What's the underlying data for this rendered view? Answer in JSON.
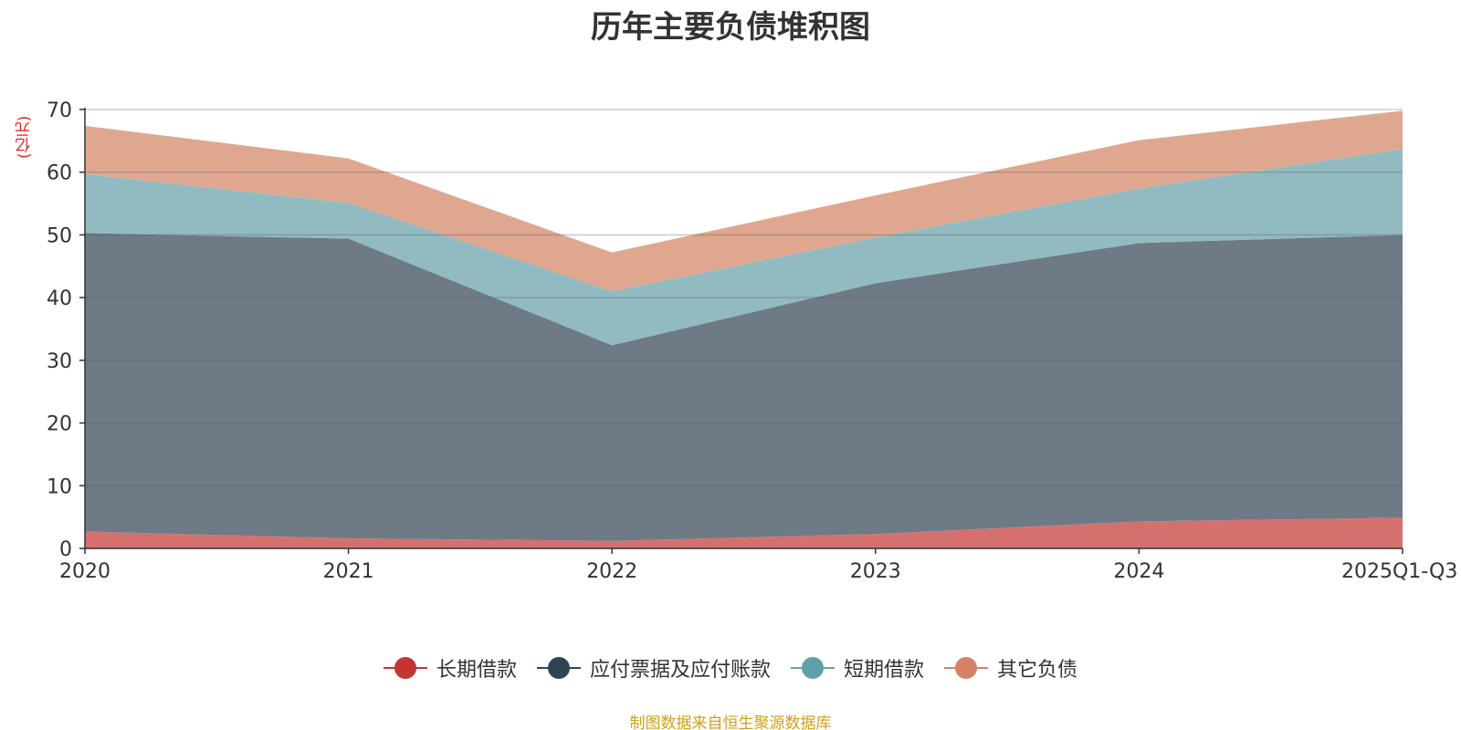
{
  "chart_data": {
    "type": "area",
    "stacked": true,
    "title": "历年主要负债堆积图",
    "ylabel": "(亿元)",
    "xlabel": "",
    "categories": [
      "2020",
      "2021",
      "2022",
      "2023",
      "2024",
      "2025Q1-Q3"
    ],
    "ylim": [
      0,
      70
    ],
    "yticks": [
      0,
      10,
      20,
      30,
      40,
      50,
      60,
      70
    ],
    "grid": true,
    "legend_position": "bottom",
    "series": [
      {
        "name": "长期借款",
        "color": "#c23531",
        "fill": "#d4716f",
        "values": [
          2.7,
          1.6,
          1.2,
          2.3,
          4.3,
          4.9
        ]
      },
      {
        "name": "应付票据及应付账款",
        "color": "#2f4554",
        "fill": "#6e7a85",
        "values": [
          47.6,
          47.8,
          31.2,
          40.0,
          44.4,
          45.1
        ]
      },
      {
        "name": "短期借款",
        "color": "#61a0a8",
        "fill": "#91bbc1",
        "values": [
          9.4,
          5.7,
          8.6,
          7.3,
          8.7,
          13.7
        ]
      },
      {
        "name": "其它负债",
        "color": "#d48265",
        "fill": "#e0a790",
        "values": [
          7.7,
          7.1,
          6.2,
          6.7,
          7.7,
          6.1
        ]
      }
    ],
    "source_note": "制图数据来自恒生聚源数据库"
  }
}
